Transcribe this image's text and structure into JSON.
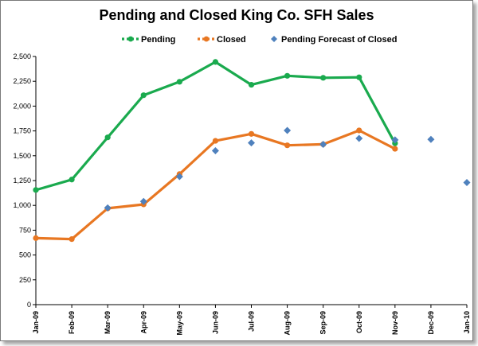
{
  "chart_data": {
    "type": "line",
    "title": "Pending and Closed King Co. SFH Sales",
    "xlabel": "",
    "ylabel": "",
    "categories": [
      "Jan-09",
      "Feb-09",
      "Mar-09",
      "Apr-09",
      "May-09",
      "Jun-09",
      "Jul-09",
      "Aug-09",
      "Sep-09",
      "Oct-09",
      "Nov-09",
      "Dec-09",
      "Jan-10"
    ],
    "ylim": [
      0,
      2500
    ],
    "yticks": [
      0,
      250,
      500,
      750,
      1000,
      1250,
      1500,
      1750,
      2000,
      2250,
      2500
    ],
    "ytick_labels": [
      "0",
      "250",
      "500",
      "750",
      "1,000",
      "1,250",
      "1,500",
      "1,750",
      "2,000",
      "2,250",
      "2,500"
    ],
    "legend_position": "top",
    "grid": false,
    "series": [
      {
        "name": "Pending",
        "type": "line",
        "color": "#1aaa4e",
        "values": [
          1155,
          1260,
          1685,
          2110,
          2245,
          2445,
          2215,
          2305,
          2285,
          2290,
          1625,
          null,
          null
        ]
      },
      {
        "name": "Closed",
        "type": "line",
        "color": "#e87722",
        "values": [
          670,
          660,
          970,
          1010,
          1315,
          1650,
          1720,
          1605,
          1615,
          1755,
          1570,
          null,
          null
        ]
      },
      {
        "name": "Pending Forecast of Closed",
        "type": "scatter",
        "color": "#4f81bd",
        "values": [
          null,
          null,
          975,
          1040,
          1290,
          1550,
          1630,
          1755,
          1615,
          1675,
          1660,
          1665,
          1230
        ]
      }
    ]
  }
}
